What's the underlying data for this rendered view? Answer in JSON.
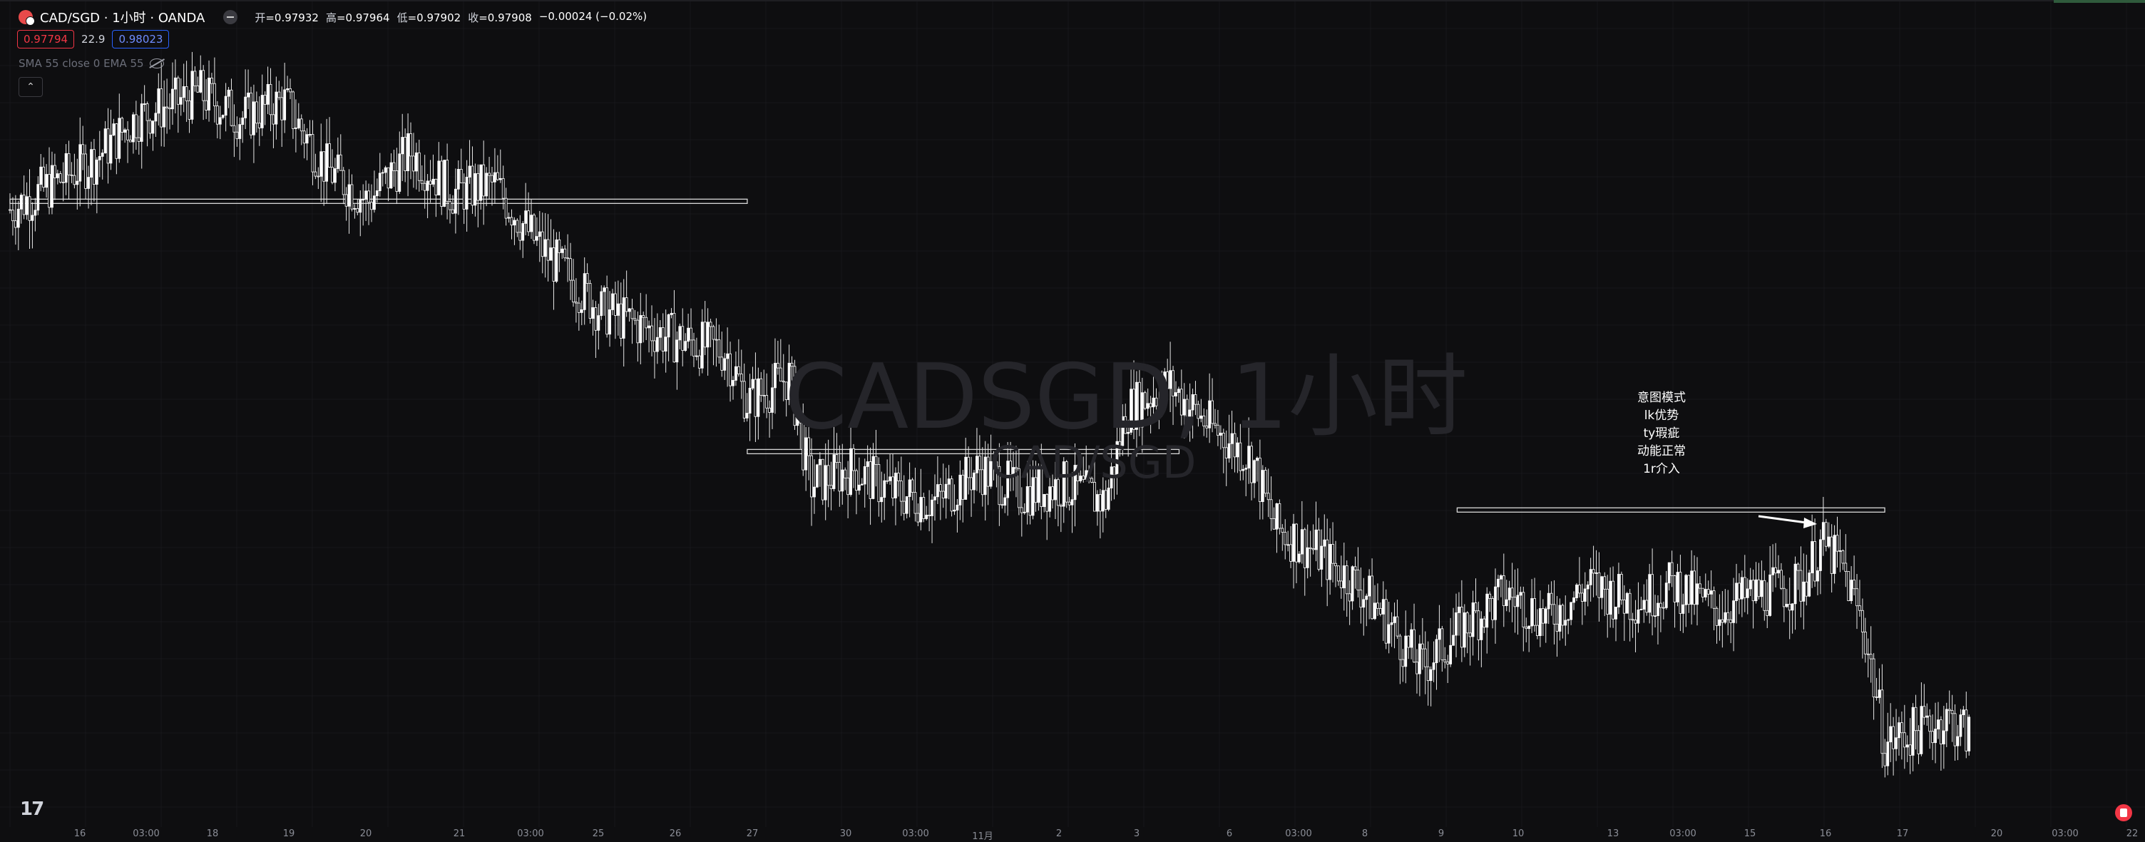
{
  "header": {
    "symbol": "CAD/SGD · 1小时 · OANDA",
    "open_label": "开",
    "open": "=0.97932",
    "high_label": "高",
    "high": "=0.97964",
    "low_label": "低",
    "low": "=0.97902",
    "close_label": "收",
    "close": "=0.97908",
    "change": "−0.00024 (−0.02%)"
  },
  "quote": {
    "bid": "0.97794",
    "spread": "22.9",
    "ask": "0.98023"
  },
  "indicators": {
    "label": "SMA 55 close 0 EMA 55"
  },
  "watermark": {
    "line1": "CADSGD, 1小时",
    "line2": "CAD/SGD"
  },
  "annotation": {
    "lines": [
      "意图模式",
      "lk优势",
      "ty瑕疵",
      "动能正常",
      "1r介入"
    ]
  },
  "x_axis": {
    "labels": [
      "16",
      "03:00",
      "18",
      "19",
      "20",
      "21",
      "03:00",
      "25",
      "26",
      "27",
      "30",
      "03:00",
      "11月",
      "2",
      "3",
      "6",
      "03:00",
      "8",
      "9",
      "10",
      "13",
      "03:00",
      "15",
      "16",
      "17",
      "20",
      "03:00",
      "22"
    ]
  },
  "icons": {
    "symbol": "currency-flag-icon",
    "collapse": "chevron-up-icon",
    "visibility": "eye-off-icon",
    "brand": "tradingview-logo-icon",
    "record": "record-icon"
  },
  "colors": {
    "background": "#0e0e10",
    "candles": "#ffffff",
    "bid": "#f23645",
    "ask": "#2962ff"
  },
  "chart_data": {
    "type": "candlestick",
    "title": "CADSGD, 1小时",
    "x_ticks": [
      "16",
      "03:00",
      "18",
      "19",
      "20",
      "21",
      "03:00",
      "25",
      "26",
      "27",
      "30",
      "03:00",
      "11月",
      "2",
      "3",
      "6",
      "03:00",
      "8",
      "9",
      "10",
      "13",
      "03:00",
      "15",
      "16",
      "17",
      "20",
      "03:00",
      "22"
    ],
    "close_path": [
      [
        0,
        0.9792
      ],
      [
        0.04,
        0.9798
      ],
      [
        0.06,
        0.9803
      ],
      [
        0.09,
        0.9806
      ],
      [
        0.11,
        0.9803
      ],
      [
        0.13,
        0.9805
      ],
      [
        0.15,
        0.9797
      ],
      [
        0.17,
        0.9793
      ],
      [
        0.19,
        0.9799
      ],
      [
        0.21,
        0.9794
      ],
      [
        0.23,
        0.9795
      ],
      [
        0.25,
        0.9788
      ],
      [
        0.28,
        0.978
      ],
      [
        0.31,
        0.9777
      ],
      [
        0.34,
        0.9775
      ],
      [
        0.35,
        0.9769
      ],
      [
        0.37,
        0.9772
      ],
      [
        0.38,
        0.9759
      ],
      [
        0.4,
        0.9761
      ],
      [
        0.42,
        0.9758
      ],
      [
        0.44,
        0.9757
      ],
      [
        0.46,
        0.9761
      ],
      [
        0.48,
        0.9758
      ],
      [
        0.5,
        0.9759
      ],
      [
        0.52,
        0.9757
      ],
      [
        0.53,
        0.9768
      ],
      [
        0.55,
        0.9771
      ],
      [
        0.57,
        0.9766
      ],
      [
        0.59,
        0.9762
      ],
      [
        0.6,
        0.9754
      ],
      [
        0.62,
        0.9751
      ],
      [
        0.64,
        0.9747
      ],
      [
        0.65,
        0.9744
      ],
      [
        0.67,
        0.9737
      ],
      [
        0.69,
        0.9742
      ],
      [
        0.71,
        0.9746
      ],
      [
        0.73,
        0.9743
      ],
      [
        0.75,
        0.9747
      ],
      [
        0.77,
        0.9745
      ],
      [
        0.79,
        0.9747
      ],
      [
        0.81,
        0.9744
      ],
      [
        0.83,
        0.9746
      ],
      [
        0.85,
        0.9747
      ],
      [
        0.86,
        0.9752
      ],
      [
        0.87,
        0.9749
      ],
      [
        0.88,
        0.9742
      ],
      [
        0.89,
        0.9728
      ],
      [
        0.91,
        0.973
      ],
      [
        0.92,
        0.9731
      ],
      [
        0.93,
        0.9729
      ]
    ],
    "levels": [
      {
        "from": 0.0,
        "to": 0.35,
        "value": 0.9793
      },
      {
        "from": 0.35,
        "to": 0.555,
        "value": 0.9763
      },
      {
        "from": 0.687,
        "to": 0.89,
        "value": 0.9756
      }
    ],
    "ylim": [
      0.9718,
      0.9812
    ]
  }
}
